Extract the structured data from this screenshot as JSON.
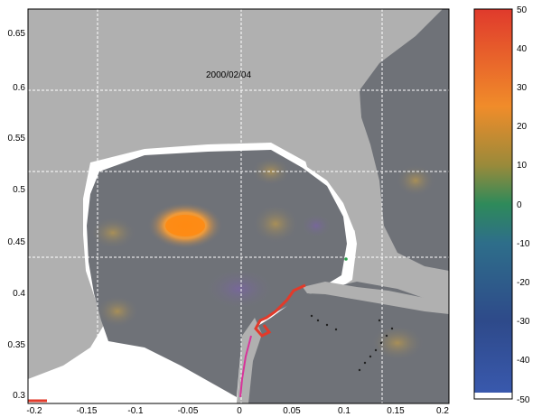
{
  "date_label": "2000/02/04",
  "x_ticks": [
    "-0.2",
    "-0.15",
    "-0.1",
    "-0.05",
    "0",
    "0.05",
    "0.1",
    "0.15",
    "0.2"
  ],
  "y_ticks": [
    "0.65",
    "0.6",
    "0.55",
    "0.5",
    "0.45",
    "0.4",
    "0.35",
    "0.3"
  ],
  "colorbar_ticks": [
    "50",
    "40",
    "30",
    "20",
    "10",
    "0",
    "-10",
    "-20",
    "-30",
    "-40",
    "-50"
  ],
  "colors": {
    "land": "#b0b0b0",
    "ocean_field": "#6f7278",
    "anomaly_high": "#f08a24",
    "anomaly_low": "#7a6fa0",
    "track": "#e23a2a",
    "grid": "#ffffff"
  }
}
